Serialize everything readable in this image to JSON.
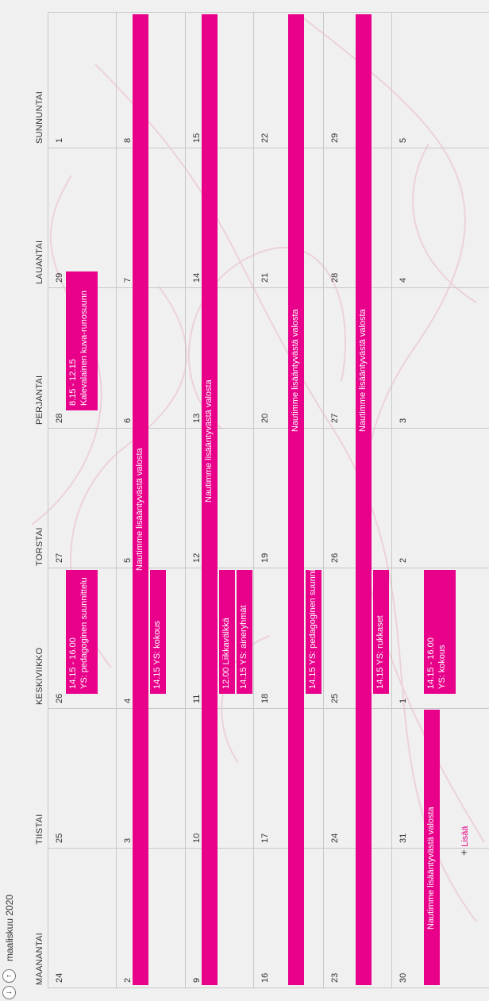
{
  "header": {
    "month": "maaliskuu 2020",
    "prev_icon": "arrow-down-icon",
    "next_icon": "arrow-up-icon"
  },
  "weekdays": [
    "MAANANTAI",
    "TIISTAI",
    "KESKIVIIKKO",
    "TORSTAI",
    "PERJANTAI",
    "LAUANTAI",
    "SUNNUNTAI"
  ],
  "weeks": [
    [
      "24",
      "25",
      "26",
      "27",
      "28",
      "29",
      "1"
    ],
    [
      "2",
      "3",
      "4",
      "5",
      "6",
      "7",
      "8"
    ],
    [
      "9",
      "10",
      "11",
      "12",
      "13",
      "14",
      "15"
    ],
    [
      "16",
      "17",
      "18",
      "19",
      "20",
      "21",
      "22"
    ],
    [
      "23",
      "24",
      "25",
      "26",
      "27",
      "28",
      "29"
    ],
    [
      "30",
      "31",
      "1",
      "2",
      "3",
      "4",
      "5"
    ]
  ],
  "events": {
    "w1_wed_time": "14.15 - 16.00",
    "w1_wed_title": "YS: pedagoginen suunnittelu",
    "w1_fri_time": "8.15 - 12.15",
    "w1_fri_title": "Kalevalainen kuva-runosuunn",
    "w2_allweek": "Nautimme lisääntyvästä valosta",
    "w2_wed": "14.15 YS: kokous",
    "w3_allweek": "Nautimme lisääntyvästä valosta",
    "w3_wed_a": "12.00 Liikkavälkkä",
    "w3_wed_b": "14.15 YS: aineryhmät",
    "w4_allweek": "Nautimme lisääntyvästä valosta",
    "w4_wed": "14.15 YS: pedagoginen suunnit",
    "w5_allweek": "Nautimme lisääntyvästä valosta",
    "w5_wed": "14.15 YS: rukkaset",
    "w6_montue": "Nautimme lisääntyvästä valosta",
    "w6_wed_time": "14.15 - 16.00",
    "w6_wed_title": "YS: kokous"
  },
  "add_label": "Lisää",
  "colors": {
    "event": "#e8008a",
    "background": "#f0f0f0",
    "gridline": "#c8c8c8"
  }
}
